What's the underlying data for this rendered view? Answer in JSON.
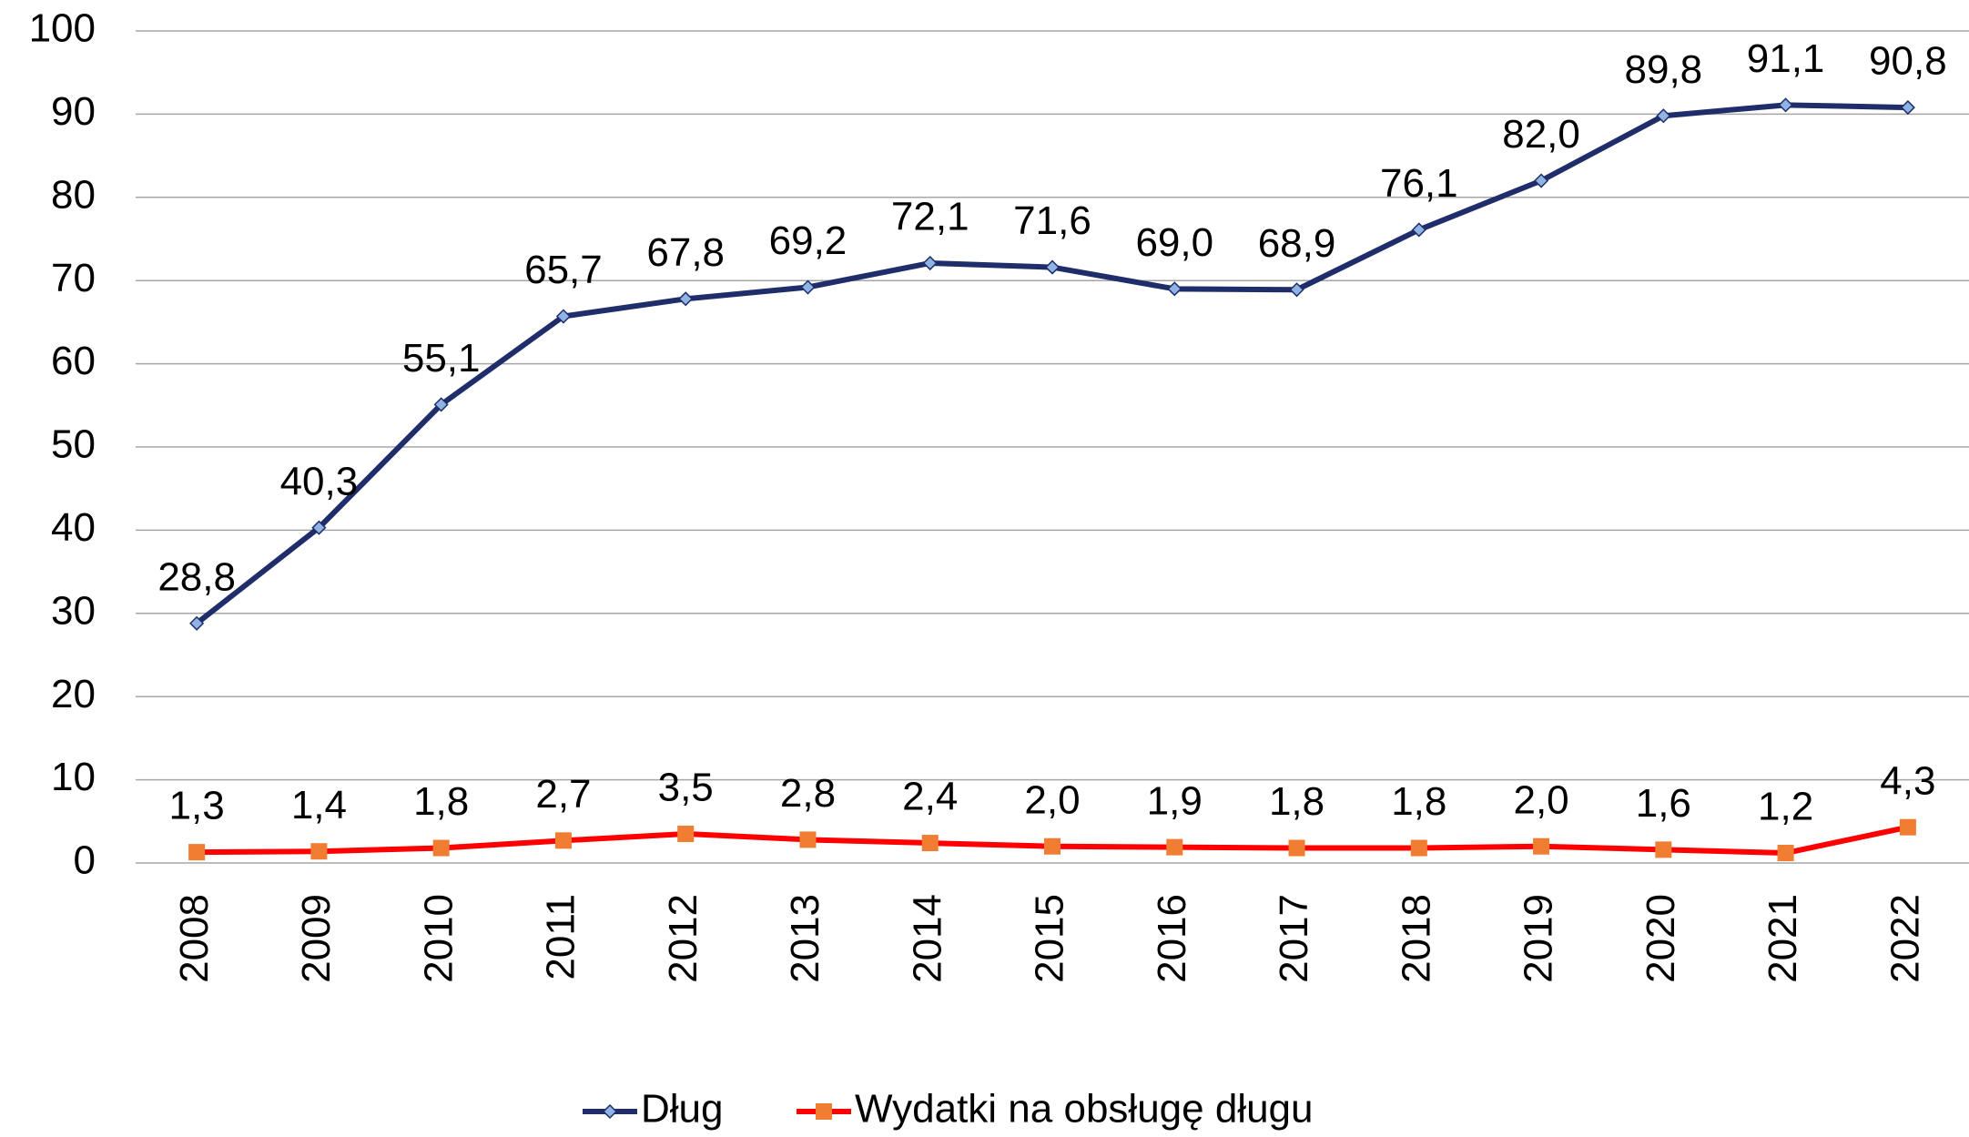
{
  "chart_data": {
    "type": "line",
    "categories": [
      "2008",
      "2009",
      "2010",
      "2011",
      "2012",
      "2013",
      "2014",
      "2015",
      "2016",
      "2017",
      "2018",
      "2019",
      "2020",
      "2021",
      "2022"
    ],
    "series": [
      {
        "name": "Dług",
        "color": "#1f2d6b",
        "marker_color": "#8fb4e3",
        "marker": "diamond",
        "values": [
          28.8,
          40.3,
          55.1,
          65.7,
          67.8,
          69.2,
          72.1,
          71.6,
          69.0,
          68.9,
          76.1,
          82.0,
          89.8,
          91.1,
          90.8
        ],
        "value_labels": [
          "28,8",
          "40,3",
          "55,1",
          "65,7",
          "67,8",
          "69,2",
          "72,1",
          "71,6",
          "69,0",
          "68,9",
          "76,1",
          "82,0",
          "89,8",
          "91,1",
          "90,8"
        ]
      },
      {
        "name": "Wydatki na obsługę długu",
        "color": "#ff0000",
        "marker_color": "#f07d32",
        "marker": "square",
        "values": [
          1.3,
          1.4,
          1.8,
          2.7,
          3.5,
          2.8,
          2.4,
          2.0,
          1.9,
          1.8,
          1.8,
          2.0,
          1.6,
          1.2,
          4.3
        ],
        "value_labels": [
          "1,3",
          "1,4",
          "1,8",
          "2,7",
          "3,5",
          "2,8",
          "2,4",
          "2,0",
          "1,9",
          "1,8",
          "1,8",
          "2,0",
          "1,6",
          "1,2",
          "4,3"
        ]
      }
    ],
    "ylim": [
      0,
      100
    ],
    "yticks": [
      0,
      10,
      20,
      30,
      40,
      50,
      60,
      70,
      80,
      90,
      100
    ],
    "grid": true,
    "legend": "bottom"
  }
}
